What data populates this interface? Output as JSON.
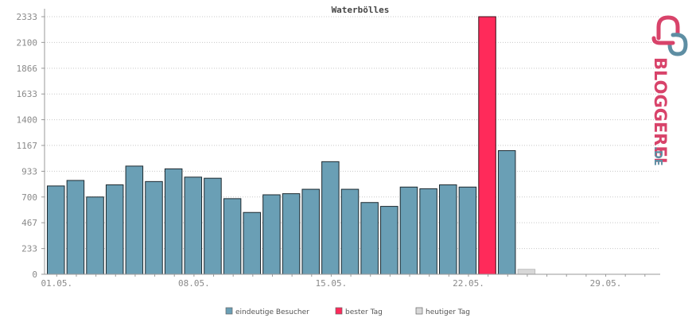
{
  "colors": {
    "visitors": "#6a9fb5",
    "best_day": "#ff2a5a",
    "today": "#d8d8d8",
    "grid": "#c8c8c8",
    "axis": "#999999",
    "logo_pink": "#d8436a",
    "logo_blue": "#5e8ea3"
  },
  "logo": {
    "text": "BLOGGEREI",
    "suffix": ".DE",
    "icon": "bloggerei-double-loop-icon"
  },
  "chart_data": {
    "type": "bar",
    "title": "Waterbölles",
    "ylim": [
      0,
      2333
    ],
    "yticks": [
      0,
      233,
      467,
      700,
      933,
      1167,
      1400,
      1633,
      1866,
      2100,
      2333
    ],
    "xticks": [
      "01.05.",
      "08.05.",
      "15.05.",
      "22.05.",
      "29.05."
    ],
    "xtick_days": [
      1,
      8,
      15,
      22,
      29
    ],
    "days": [
      1,
      2,
      3,
      4,
      5,
      6,
      7,
      8,
      9,
      10,
      11,
      12,
      13,
      14,
      15,
      16,
      17,
      18,
      19,
      20,
      21,
      22,
      23,
      24,
      25,
      26,
      27,
      28,
      29,
      30,
      31
    ],
    "series": [
      {
        "name": "eindeutige Besucher",
        "values": [
          800,
          850,
          700,
          810,
          980,
          840,
          955,
          880,
          870,
          685,
          560,
          720,
          730,
          770,
          1020,
          770,
          650,
          615,
          790,
          775,
          810,
          790,
          0,
          1120,
          0,
          0,
          0,
          0,
          0,
          0,
          0
        ]
      },
      {
        "name": "bester Tag",
        "values": [
          0,
          0,
          0,
          0,
          0,
          0,
          0,
          0,
          0,
          0,
          0,
          0,
          0,
          0,
          0,
          0,
          0,
          0,
          0,
          0,
          0,
          0,
          2333,
          0,
          0,
          0,
          0,
          0,
          0,
          0,
          0
        ]
      },
      {
        "name": "heutiger Tag",
        "values": [
          0,
          0,
          0,
          0,
          0,
          0,
          0,
          0,
          0,
          0,
          0,
          0,
          0,
          0,
          0,
          0,
          0,
          0,
          0,
          0,
          0,
          0,
          0,
          0,
          45,
          0,
          0,
          0,
          0,
          0,
          0
        ]
      }
    ],
    "grid": true,
    "legend": "bottom"
  }
}
